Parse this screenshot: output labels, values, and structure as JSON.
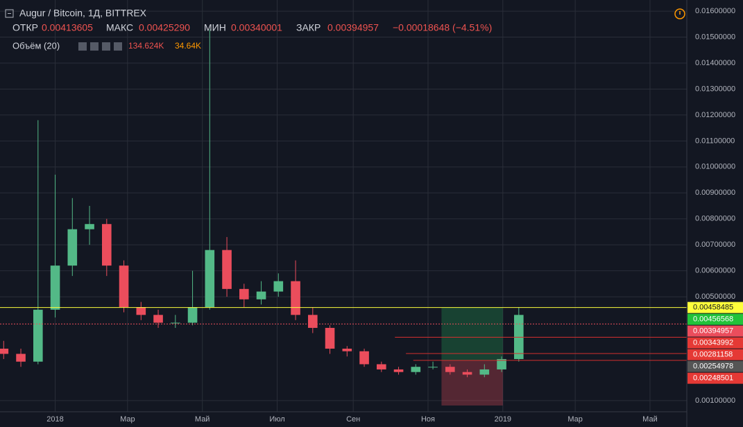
{
  "header": {
    "symbol": "Augur / Bitcoin, 1Д, BITTREX",
    "open_label": "ОТКР",
    "open": "0.00413605",
    "high_label": "МАКС",
    "high": "0.00425290",
    "low_label": "МИН",
    "low": "0.00340001",
    "close_label": "ЗАКР",
    "close": "0.00394957",
    "change": "−0.00018648 (−4.51%)",
    "volume_label": "Объём (20)",
    "volume": "134.624K",
    "volume_ma": "34.64K"
  },
  "chart_data": {
    "type": "candlestick",
    "up_color": "#53b987",
    "down_color": "#eb4d5c",
    "grid": true,
    "x": [
      -42,
      -28,
      -14,
      0,
      14,
      28,
      42,
      56,
      70,
      84,
      98,
      112,
      126,
      140,
      154,
      168,
      182,
      196,
      210,
      224,
      238,
      252,
      266,
      280,
      294,
      308,
      322,
      336,
      350,
      364,
      378
    ],
    "open": [
      0.003,
      0.0028,
      0.0025,
      0.0045,
      0.0062,
      0.0076,
      0.0078,
      0.0062,
      0.0046,
      0.0043,
      0.004,
      0.004,
      0.0046,
      0.0068,
      0.0053,
      0.0049,
      0.0052,
      0.0056,
      0.0043,
      0.0038,
      0.003,
      0.0029,
      0.0024,
      0.0022,
      0.0021,
      0.0023,
      0.0023,
      0.0021,
      0.002,
      0.0022,
      0.0026
    ],
    "high": [
      0.0033,
      0.003,
      0.0118,
      0.0097,
      0.0088,
      0.0085,
      0.008,
      0.0064,
      0.0048,
      0.0045,
      0.0043,
      0.006,
      0.0153,
      0.0073,
      0.0055,
      0.0056,
      0.0059,
      0.0064,
      0.0046,
      0.0039,
      0.0031,
      0.003,
      0.0025,
      0.0023,
      0.0024,
      0.0025,
      0.0024,
      0.0022,
      0.0024,
      0.0027,
      0.0046
    ],
    "low": [
      0.0026,
      0.0023,
      0.0024,
      0.0042,
      0.0058,
      0.007,
      0.0058,
      0.0044,
      0.0041,
      0.0038,
      0.0038,
      0.0039,
      0.0045,
      0.005,
      0.0046,
      0.0047,
      0.005,
      0.0041,
      0.0036,
      0.0028,
      0.0027,
      0.0023,
      0.0021,
      0.002,
      0.002,
      0.0022,
      0.002,
      0.0019,
      0.0019,
      0.0021,
      0.0025
    ],
    "close": [
      0.0028,
      0.0025,
      0.0045,
      0.0062,
      0.0076,
      0.0078,
      0.0062,
      0.0046,
      0.0043,
      0.004,
      0.004,
      0.0046,
      0.0068,
      0.0053,
      0.0049,
      0.0052,
      0.0056,
      0.0043,
      0.0038,
      0.003,
      0.0029,
      0.0024,
      0.0022,
      0.0021,
      0.0023,
      0.0023,
      0.0021,
      0.002,
      0.0022,
      0.0026,
      0.0043
    ],
    "xlim": [
      -45,
      515
    ],
    "xticks": [
      {
        "value": 0,
        "label": "2018"
      },
      {
        "value": 59,
        "label": "Мар"
      },
      {
        "value": 120,
        "label": "Май"
      },
      {
        "value": 181,
        "label": "Июл"
      },
      {
        "value": 243,
        "label": "Сен"
      },
      {
        "value": 304,
        "label": "Ноя"
      },
      {
        "value": 365,
        "label": "2019"
      },
      {
        "value": 424,
        "label": "Мар"
      },
      {
        "value": 485,
        "label": "Май"
      }
    ],
    "ylim": [
      0.00057,
      0.01643
    ],
    "yticks": [
      {
        "value": 0.001,
        "label": "0.00100000"
      },
      {
        "value": 0.005,
        "label": "0.00500000"
      },
      {
        "value": 0.006,
        "label": "0.00600000"
      },
      {
        "value": 0.007,
        "label": "0.00700000"
      },
      {
        "value": 0.008,
        "label": "0.00800000"
      },
      {
        "value": 0.009,
        "label": "0.00900000"
      },
      {
        "value": 0.01,
        "label": "0.01000000"
      },
      {
        "value": 0.011,
        "label": "0.01100000"
      },
      {
        "value": 0.012,
        "label": "0.01200000"
      },
      {
        "value": 0.013,
        "label": "0.01300000"
      },
      {
        "value": 0.014,
        "label": "0.01400000"
      },
      {
        "value": 0.015,
        "label": "0.01500000"
      },
      {
        "value": 0.016,
        "label": "0.01600000"
      }
    ],
    "lines": [
      {
        "value": 0.00458485,
        "color": "#ffff3b"
      },
      {
        "value": 0.00394957,
        "color": "#eb4d5c",
        "style": "dotted"
      },
      {
        "value": 0.00343992,
        "color": "#d32f2f",
        "start": 277
      },
      {
        "value": 0.00281158,
        "color": "#d32f2f",
        "start": 286
      },
      {
        "value": 0.00254978,
        "color": "#d32f2f",
        "start": 292
      }
    ],
    "position": {
      "start": 315,
      "end": 365,
      "target": 0.00458485,
      "entry": 0.00254978,
      "stop": 0.00081
    },
    "price_labels": [
      {
        "value": 0.00458485,
        "color": "#ffff3b"
      },
      {
        "value": 0.00456568,
        "color": "#22c23a"
      },
      {
        "value": 0.00394957,
        "color": "#eb4d5c"
      },
      {
        "value": 0.00343992,
        "color": "#e53935"
      },
      {
        "value": 0.00281158,
        "color": "#e53935"
      },
      {
        "value": 0.00254978,
        "color": "#555"
      },
      {
        "value": 0.00248501,
        "color": "#e53935"
      }
    ]
  }
}
